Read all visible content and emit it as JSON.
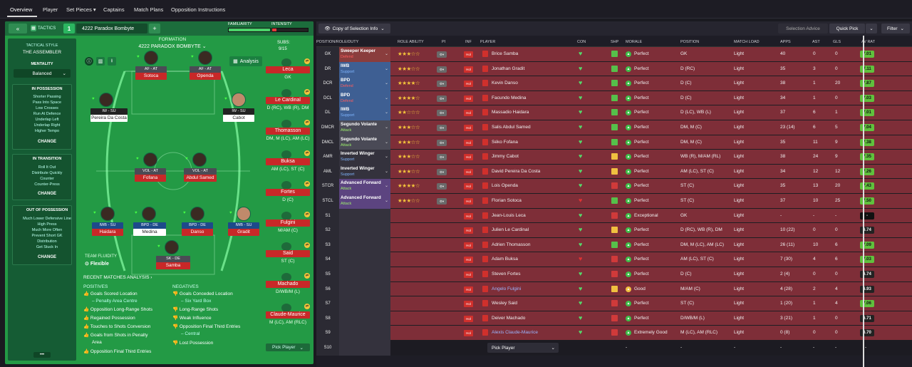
{
  "top_tabs": [
    "Overview",
    "Player",
    "Set Pieces ▾",
    "Captains",
    "Match Plans",
    "Opposition Instructions"
  ],
  "tactics": {
    "label": "TACTICS",
    "slot": "1",
    "name": "4222 Paradox Bombyte",
    "familiarity": "FAMILIARITY",
    "intensity": "INTENSITY"
  },
  "formation": {
    "label": "FORMATION",
    "name": "4222 PARADOX BOMBYTE",
    "subs_label": "SUBS:",
    "subs": "9/15",
    "analysis": "Analysis"
  },
  "side": {
    "style_label": "TACTICAL STYLE",
    "style": "THE ASSEMBLER",
    "mentality_label": "MENTALITY",
    "mentality": "Balanced",
    "boxes": [
      {
        "title": "IN POSSESSION",
        "items": [
          "Shorter Passing",
          "Pass Into Space",
          "Low Crosses",
          "Run At Defence",
          "Underlap Left",
          "Underlap Right",
          "Higher Tempo"
        ],
        "change": "CHANGE"
      },
      {
        "title": "IN TRANSITION",
        "items": [
          "Roll It Out",
          "Distribute Quickly",
          "Counter",
          "Counter-Press"
        ],
        "change": "CHANGE"
      },
      {
        "title": "OUT OF POSSESSION",
        "items": [
          "Much Lower Defensive Line",
          "High Press",
          "Much More Often",
          "Prevent Short GK",
          "Distribution",
          "Get Stuck In"
        ],
        "change": "CHANGE"
      }
    ]
  },
  "fluidity": {
    "label": "TEAM FLUIDITY",
    "value": "Flexible"
  },
  "pitch_players": [
    {
      "role": "AF - AT",
      "name": "Sotoca"
    },
    {
      "role": "AF - AT",
      "name": "Openda"
    },
    {
      "role": "IW - SU",
      "name": "Pereira Da Costa"
    },
    {
      "role": "IW - SU",
      "name": "Cabot"
    },
    {
      "role": "VOL - AT",
      "name": "Fofana"
    },
    {
      "role": "VOL - AT",
      "name": "Abdul Samed"
    },
    {
      "role": "IWB - SU",
      "name": "Haidara"
    },
    {
      "role": "BPD - DE",
      "name": "Medina"
    },
    {
      "role": "BPD - DE",
      "name": "Danso"
    },
    {
      "role": "IWB - SU",
      "name": "Gradit"
    },
    {
      "role": "SK - DE",
      "name": "Samba"
    }
  ],
  "subs": [
    {
      "name": "Leca",
      "pos": "GK"
    },
    {
      "name": "Le Cardinal",
      "pos": "D (RC), WB (R), DM"
    },
    {
      "name": "Thomasson",
      "pos": "DM, M (LC), AM (LC)"
    },
    {
      "name": "Buksa",
      "pos": "AM (LC), ST (C)"
    },
    {
      "name": "Fortes",
      "pos": "D (C)"
    },
    {
      "name": "Fulgini",
      "pos": "M/AM (C)"
    },
    {
      "name": "Said",
      "pos": "ST (C)"
    },
    {
      "name": "Machado",
      "pos": "D/WB/M (L)"
    },
    {
      "name": "Claude-Maurice",
      "pos": "M (LC), AM (RLC)"
    }
  ],
  "pick_player": "Pick Player",
  "analysis": {
    "title": "RECENT MATCHES ANALYSIS ›",
    "positives_label": "POSITIVES",
    "negatives_label": "NEGATIVES",
    "positives": [
      "Goals Scored Location",
      "– Penalty Area Centre",
      "Opposition Long-Range Shots",
      "Regained Possession",
      "Touches to Shots Conversion",
      "Goals from Shots in Penalty",
      "Area",
      "Opposition Final Third Entries"
    ],
    "negatives": [
      "Goals Conceded Location",
      "– Six Yard Box",
      "Long-Range Shots",
      "Weak Influence",
      "Opposition Final Third Entries",
      "– Central",
      "Lost Possession"
    ]
  },
  "table_toolbar": {
    "copy": "Copy of Selection Info",
    "selection_advice": "Selection Advice",
    "quick_pick": "Quick Pick",
    "filter": "Filter"
  },
  "headers": [
    "POSITION/ROLE/DUTY",
    "ROLE ABILITY",
    "PI",
    "INF",
    "PLAYER",
    "CON",
    "SHP",
    "MORALE",
    "POSITION",
    "MATCH LOAD",
    "APPS",
    "AST",
    "GLS",
    "AV RAT"
  ],
  "rows": [
    {
      "pos": "GK",
      "role": "Sweeper Keeper",
      "duty": "Defend",
      "stars": 3,
      "player": "Brice Samba",
      "morale": "Perfect",
      "position": "GK",
      "load": "Light",
      "apps": "40",
      "ast": "0",
      "gls": "0",
      "rat": "7.01"
    },
    {
      "pos": "DR",
      "role": "IWB",
      "duty": "Support",
      "stars": 3,
      "player": "Jonathan Gradit",
      "morale": "Perfect",
      "position": "D (RC)",
      "load": "Light",
      "apps": "35",
      "ast": "3",
      "gls": "0",
      "rat": "7.11"
    },
    {
      "pos": "DCR",
      "role": "BPD",
      "duty": "Defend",
      "stars": 4,
      "player": "Kevin Danso",
      "morale": "Perfect",
      "position": "D (C)",
      "load": "Light",
      "apps": "38",
      "ast": "1",
      "gls": "20",
      "rat": "7.87"
    },
    {
      "pos": "DCL",
      "role": "BPD",
      "duty": "Defend",
      "stars": 4,
      "player": "Facundo Medina",
      "morale": "Perfect",
      "position": "D (C)",
      "load": "Light",
      "apps": "34",
      "ast": "1",
      "gls": "0",
      "rat": "7.03"
    },
    {
      "pos": "DL",
      "role": "IWB",
      "duty": "Support",
      "stars": 2,
      "player": "Massadio Haidara",
      "morale": "Perfect",
      "position": "D (LC), WB (L)",
      "load": "Light",
      "apps": "37",
      "ast": "6",
      "gls": "1",
      "rat": "7.01"
    },
    {
      "pos": "DMCR",
      "role": "Segundo Volante",
      "duty": "Attack",
      "stars": 3,
      "player": "Salis Abdul Samed",
      "morale": "Perfect",
      "position": "DM, M (C)",
      "load": "Light",
      "apps": "23 (14)",
      "ast": "6",
      "gls": "5",
      "rat": "7.04"
    },
    {
      "pos": "DMCL",
      "role": "Segundo Volante",
      "duty": "Attack",
      "stars": 3,
      "player": "Séko Fofana",
      "morale": "Perfect",
      "position": "DM, M (C)",
      "load": "Light",
      "apps": "35",
      "ast": "11",
      "gls": "9",
      "rat": "7.38"
    },
    {
      "pos": "AMR",
      "role": "Inverted Winger",
      "duty": "Support",
      "stars": 3,
      "player": "Jimmy Cabot",
      "morale": "Perfect",
      "position": "WB (R), M/AM (RL)",
      "load": "Light",
      "apps": "38",
      "ast": "24",
      "gls": "9",
      "rat": "7.35"
    },
    {
      "pos": "AML",
      "role": "Inverted Winger",
      "duty": "Support",
      "stars": 3,
      "player": "David Pereira Da Costa",
      "morale": "Perfect",
      "position": "AM (LC), ST (C)",
      "load": "Light",
      "apps": "34",
      "ast": "12",
      "gls": "12",
      "rat": "7.26"
    },
    {
      "pos": "STCR",
      "role": "Advanced Forward",
      "duty": "Attack",
      "stars": 4,
      "player": "Lois Openda",
      "morale": "Perfect",
      "position": "ST (C)",
      "load": "Light",
      "apps": "35",
      "ast": "13",
      "gls": "20",
      "rat": "7.43"
    },
    {
      "pos": "STCL",
      "role": "Advanced Forward",
      "duty": "Attack",
      "stars": 3,
      "player": "Florian Sotoca",
      "morale": "Perfect",
      "position": "ST (C)",
      "load": "Light",
      "apps": "37",
      "ast": "10",
      "gls": "25",
      "rat": "7.50"
    },
    {
      "pos": "S1",
      "player": "Jean-Louis Leca",
      "morale": "Exceptional",
      "position": "GK",
      "load": "Light",
      "apps": "-",
      "ast": "-",
      "gls": "-",
      "rat": "-"
    },
    {
      "pos": "S2",
      "player": "Julien Le Cardinal",
      "morale": "Perfect",
      "position": "D (RC), WB (R), DM",
      "load": "Light",
      "apps": "10 (22)",
      "ast": "0",
      "gls": "0",
      "rat": "6.74"
    },
    {
      "pos": "S3",
      "player": "Adrien Thomasson",
      "morale": "Perfect",
      "position": "DM, M (LC), AM (LC)",
      "load": "Light",
      "apps": "26 (11)",
      "ast": "10",
      "gls": "6",
      "rat": "7.09"
    },
    {
      "pos": "S4",
      "player": "Adam Buksa",
      "morale": "Perfect",
      "position": "AM (LC), ST (C)",
      "load": "Light",
      "apps": "7 (30)",
      "ast": "4",
      "gls": "6",
      "rat": "7.03"
    },
    {
      "pos": "S5",
      "player": "Steven Fortes",
      "morale": "Perfect",
      "position": "D (C)",
      "load": "Light",
      "apps": "2 (4)",
      "ast": "0",
      "gls": "0",
      "rat": "6.74"
    },
    {
      "pos": "S6",
      "player": "Angelo Fulgini",
      "morale": "Good",
      "position": "M/AM (C)",
      "load": "Light",
      "apps": "4 (28)",
      "ast": "2",
      "gls": "4",
      "rat": "6.93"
    },
    {
      "pos": "S7",
      "player": "Wesley Said",
      "morale": "Perfect",
      "position": "ST (C)",
      "load": "Light",
      "apps": "1 (20)",
      "ast": "1",
      "gls": "4",
      "rat": "7.06"
    },
    {
      "pos": "S8",
      "player": "Deiver Machado",
      "morale": "Perfect",
      "position": "D/WB/M (L)",
      "load": "Light",
      "apps": "3 (21)",
      "ast": "1",
      "gls": "0",
      "rat": "6.71"
    },
    {
      "pos": "S9",
      "player": "Alexis Claude-Maurice",
      "morale": "Extremely Good",
      "position": "M (LC), AM (RLC)",
      "load": "Light",
      "apps": "0 (8)",
      "ast": "0",
      "gls": "0",
      "rat": "6.70"
    },
    {
      "pos": "S10",
      "player": "Pick Player",
      "morale": "-",
      "position": "-",
      "load": "-",
      "apps": "-",
      "ast": "-",
      "gls": "-",
      "rat": "-"
    }
  ]
}
